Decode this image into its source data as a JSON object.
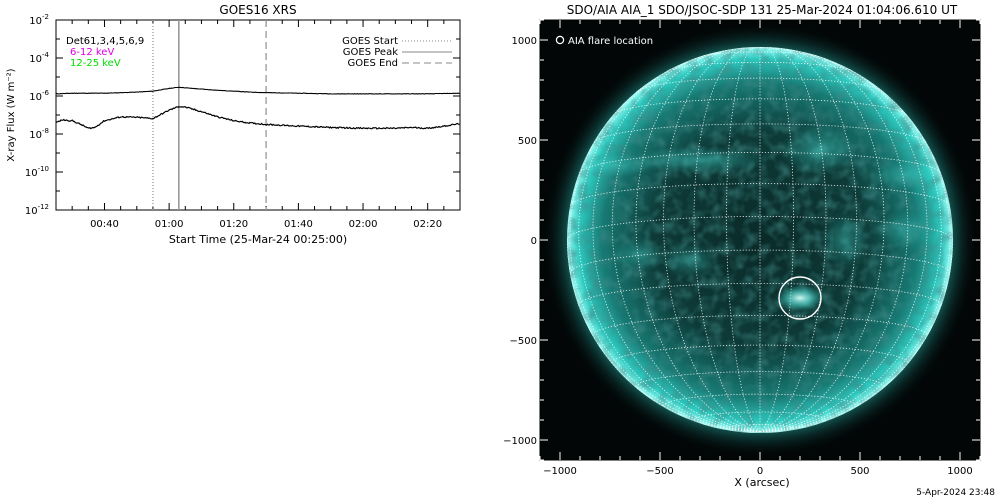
{
  "chart_data": [
    {
      "type": "line",
      "title": "GOES16 XRS",
      "xlabel": "Start Time (25-Mar-24 00:25:00)",
      "ylabel": "X-ray Flux (W m⁻²)",
      "y_scale": "log",
      "x_range": [
        "00:25",
        "02:30"
      ],
      "ylim": [
        1e-12,
        0.01
      ],
      "x_ticks": [
        "00:40",
        "01:00",
        "01:20",
        "01:40",
        "02:00",
        "02:20"
      ],
      "y_ticks": [
        {
          "mantissa": "10",
          "exp": "-12",
          "value": 1e-12
        },
        {
          "mantissa": "10",
          "exp": "-10",
          "value": 1e-10
        },
        {
          "mantissa": "10",
          "exp": "-8",
          "value": 1e-08
        },
        {
          "mantissa": "10",
          "exp": "-6",
          "value": 1e-06
        },
        {
          "mantissa": "10",
          "exp": "-4",
          "value": 0.0001
        },
        {
          "mantissa": "10",
          "exp": "-2",
          "value": 0.01
        }
      ],
      "detectors_label": "Det61,3,4,5,6,9",
      "series": [
        {
          "name": "6-12 keV",
          "color": "#e000e0",
          "line_color": "#000000",
          "x": [
            "00:25",
            "00:30",
            "00:35",
            "00:40",
            "00:45",
            "00:50",
            "00:55",
            "01:00",
            "01:03",
            "01:05",
            "01:10",
            "01:15",
            "01:20",
            "01:25",
            "01:30",
            "01:40",
            "01:50",
            "02:00",
            "02:10",
            "02:20",
            "02:30"
          ],
          "y": [
            1.3e-06,
            1.4e-06,
            1.4e-06,
            1.4e-06,
            1.5e-06,
            1.6e-06,
            1.8e-06,
            2.5e-06,
            2.9e-06,
            2.7e-06,
            2.3e-06,
            2e-06,
            1.8e-06,
            1.6e-06,
            1.5e-06,
            1.4e-06,
            1.3e-06,
            1.3e-06,
            1.3e-06,
            1.3e-06,
            1.4e-06
          ]
        },
        {
          "name": "12-25 keV",
          "color": "#00dd00",
          "line_color": "#000000",
          "x": [
            "00:25",
            "00:27",
            "00:30",
            "00:33",
            "00:35",
            "00:37",
            "00:40",
            "00:45",
            "00:50",
            "00:55",
            "01:00",
            "01:03",
            "01:05",
            "01:10",
            "01:15",
            "01:20",
            "01:25",
            "01:30",
            "01:40",
            "01:50",
            "02:00",
            "02:10",
            "02:15",
            "02:20",
            "02:25",
            "02:30"
          ],
          "y": [
            4e-08,
            5.5e-08,
            5e-08,
            3e-08,
            2e-08,
            2.2e-08,
            5e-08,
            8e-08,
            7.5e-08,
            6.5e-08,
            1.8e-07,
            2.8e-07,
            2.6e-07,
            1.5e-07,
            8e-08,
            5e-08,
            3.8e-08,
            3.2e-08,
            2.6e-08,
            2.2e-08,
            2e-08,
            2e-08,
            2.2e-08,
            2e-08,
            2.6e-08,
            3.5e-08
          ]
        }
      ],
      "markers": [
        {
          "name": "GOES Start",
          "x": "00:55",
          "style": "dotted"
        },
        {
          "name": "GOES Peak",
          "x": "01:03",
          "style": "solid"
        },
        {
          "name": "GOES End",
          "x": "01:30",
          "style": "dashed"
        }
      ],
      "legend_placement": "top-right"
    },
    {
      "type": "image",
      "title": "SDO/AIA AIA_1 SDO/JSOC-SDP 131 25-Mar-2024 01:04:06.610 UT",
      "xlabel": "X (arcsec)",
      "ylabel": "",
      "x_range": [
        -1100,
        1100
      ],
      "y_range": [
        -1100,
        1100
      ],
      "x_ticks": [
        "−1000",
        "−500",
        "0",
        "500",
        "1000"
      ],
      "y_ticks": [
        "1000",
        "500",
        "0",
        "−500",
        "−1000"
      ],
      "x_tick_values": [
        -1000,
        -500,
        0,
        500,
        1000
      ],
      "y_tick_values": [
        1000,
        500,
        0,
        -500,
        -1000
      ],
      "legend_label": "AIA flare location",
      "solar_radius_arcsec": 965,
      "flare_location": {
        "x": 200,
        "y": -290,
        "radius": 105
      },
      "disk_color": "#1fb0a8",
      "background_color": "#020606"
    }
  ],
  "footer": {
    "timestamp": "5-Apr-2024 23:48"
  }
}
